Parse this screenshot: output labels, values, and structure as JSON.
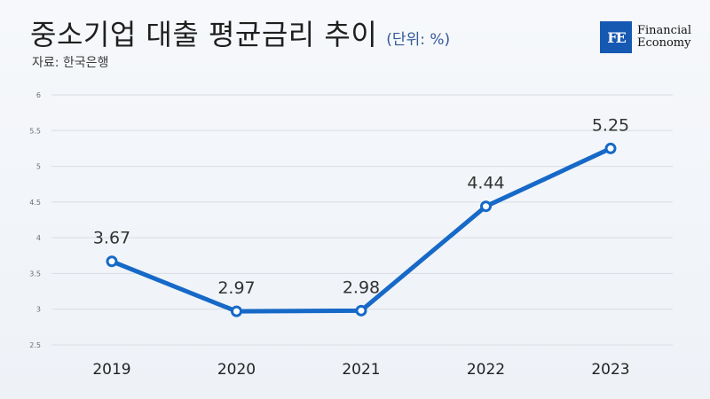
{
  "header": {
    "title": "중소기업 대출 평균금리 추이",
    "unit": "(단위: %)",
    "source": "자료: 한국은행"
  },
  "logo": {
    "mark": "FE",
    "line1": "Financial",
    "line2": "Economy"
  },
  "colors": {
    "line": "#1669c7",
    "marker_fill": "#ffffff",
    "grid": "#d9dde3",
    "tick_text": "#6c6c6c",
    "label_text": "#333333",
    "logo_bg": "#1659b2"
  },
  "chart_data": {
    "type": "line",
    "title": "중소기업 대출 평균금리 추이",
    "xlabel": "",
    "ylabel": "",
    "categories": [
      "2019",
      "2020",
      "2021",
      "2022",
      "2023"
    ],
    "values": [
      3.67,
      2.97,
      2.98,
      4.44,
      5.25
    ],
    "data_labels": [
      "3.67",
      "2.97",
      "2.98",
      "4.44",
      "5.25"
    ],
    "ylim": [
      2.5,
      6
    ],
    "yticks": [
      2.5,
      3,
      3.5,
      4,
      4.5,
      5,
      5.5,
      6
    ],
    "ytick_labels": [
      "2.5",
      "3",
      "3.5",
      "4",
      "4.5",
      "5",
      "5.5",
      "6"
    ],
    "grid": true,
    "legend": "none"
  }
}
